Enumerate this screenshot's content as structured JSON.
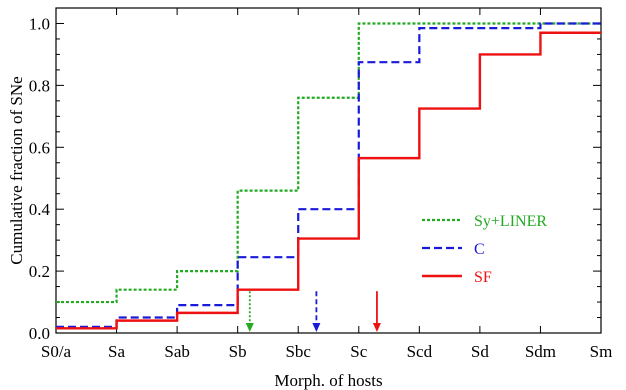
{
  "chart_data": {
    "type": "line",
    "step": true,
    "title": "",
    "xlabel": "Morph. of hosts",
    "ylabel": "Cumulative fraction of SNe",
    "categories": [
      "S0/a",
      "Sa",
      "Sab",
      "Sb",
      "Sbc",
      "Sc",
      "Scd",
      "Sd",
      "Sdm",
      "Sm"
    ],
    "ylim": [
      0,
      1.05
    ],
    "yticks": [
      "0.0",
      "0.2",
      "0.4",
      "0.6",
      "0.8",
      "1.0"
    ],
    "grid": false,
    "legend_position": "center-right",
    "series": [
      {
        "name": "Sy+LINER",
        "color": "#22aa22",
        "dash": "dotted",
        "values": [
          0.1,
          0.14,
          0.2,
          0.46,
          0.76,
          1.0,
          1.0,
          1.0,
          1.0,
          1.0
        ],
        "median_index": 3.2
      },
      {
        "name": "C",
        "color": "#1a1adb",
        "dash": "dashed",
        "values": [
          0.02,
          0.05,
          0.09,
          0.245,
          0.4,
          0.875,
          0.985,
          0.985,
          1.0,
          1.0
        ],
        "median_index": 4.3
      },
      {
        "name": "SF",
        "color": "#ee1111",
        "dash": "solid",
        "values": [
          0.015,
          0.04,
          0.065,
          0.14,
          0.305,
          0.565,
          0.725,
          0.9,
          0.97,
          0.97
        ],
        "median_index": 5.3
      }
    ]
  }
}
